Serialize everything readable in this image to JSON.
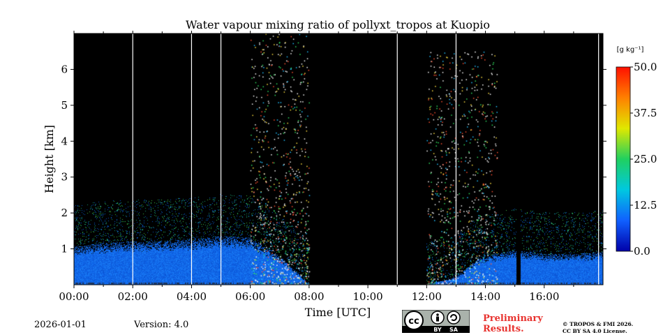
{
  "chart_data": {
    "type": "heatmap",
    "title": "Water vapour mixing ratio of pollyxt_tropos at Kuopio",
    "xlabel": "Time [UTC]",
    "ylabel": "Height [km]",
    "x_unit": "hours UTC",
    "xlim": [
      0,
      18
    ],
    "ylim": [
      0,
      7
    ],
    "x_ticks": [
      0,
      2,
      4,
      6,
      8,
      10,
      12,
      14,
      16
    ],
    "x_tick_labels": [
      "00:00",
      "02:00",
      "04:00",
      "06:00",
      "08:00",
      "10:00",
      "12:00",
      "14:00",
      "16:00"
    ],
    "y_ticks": [
      1,
      2,
      3,
      4,
      5,
      6
    ],
    "y_tick_labels": [
      "1",
      "2",
      "3",
      "4",
      "5",
      "6"
    ],
    "colorbar": {
      "label": "[g kg⁻¹]",
      "min": 0,
      "max": 50,
      "ticks": [
        0,
        12.5,
        25,
        37.5,
        50
      ],
      "tick_labels": [
        "0.0",
        "12.5",
        "25.0",
        "37.5",
        "50.0"
      ],
      "colors": [
        "#0000a8",
        "#1060ff",
        "#00c8e0",
        "#20d060",
        "#e0e800",
        "#ff8000",
        "#ff1000"
      ]
    },
    "no_data_color": "#000000",
    "gap_lines_hours": [
      2.0,
      4.0,
      5.0,
      11.0,
      13.0,
      17.85
    ],
    "no_signal_intervals_hours": [
      [
        8.0,
        12.0
      ]
    ],
    "dropout_intervals_hours": [
      [
        15.05,
        15.2
      ]
    ],
    "moist_layer": [
      {
        "t": 0.0,
        "top_km": 1.05
      },
      {
        "t": 1.0,
        "top_km": 1.15
      },
      {
        "t": 2.0,
        "top_km": 1.2
      },
      {
        "t": 3.0,
        "top_km": 1.2
      },
      {
        "t": 4.0,
        "top_km": 1.25
      },
      {
        "t": 5.0,
        "top_km": 1.35
      },
      {
        "t": 6.0,
        "top_km": 1.3
      },
      {
        "t": 7.0,
        "top_km": 0.8
      },
      {
        "t": 7.7,
        "top_km": 0.25
      },
      {
        "t": 8.0,
        "top_km": 0.0
      },
      {
        "t": 12.0,
        "top_km": 0.0
      },
      {
        "t": 13.0,
        "top_km": 0.2
      },
      {
        "t": 13.8,
        "top_km": 0.75
      },
      {
        "t": 15.0,
        "top_km": 0.95
      },
      {
        "t": 16.0,
        "top_km": 0.85
      },
      {
        "t": 17.0,
        "top_km": 0.85
      },
      {
        "t": 18.0,
        "top_km": 0.9
      }
    ],
    "noise_regions": [
      {
        "t_start": 6.0,
        "t_end": 8.0,
        "max_km": 7.0
      },
      {
        "t_start": 12.0,
        "t_end": 14.4,
        "max_km": 6.5
      }
    ]
  },
  "footer": {
    "date": "2026-01-01",
    "version": "Version: 4.0",
    "preliminary_line1": "Preliminary",
    "preliminary_line2": "Results.",
    "copyright_line1": "© TROPOS & FMI 2026.",
    "copyright_line2": "CC BY SA 4.0 License.",
    "license_badge": {
      "main": "cc",
      "by": "BY",
      "sa": "SA"
    }
  }
}
